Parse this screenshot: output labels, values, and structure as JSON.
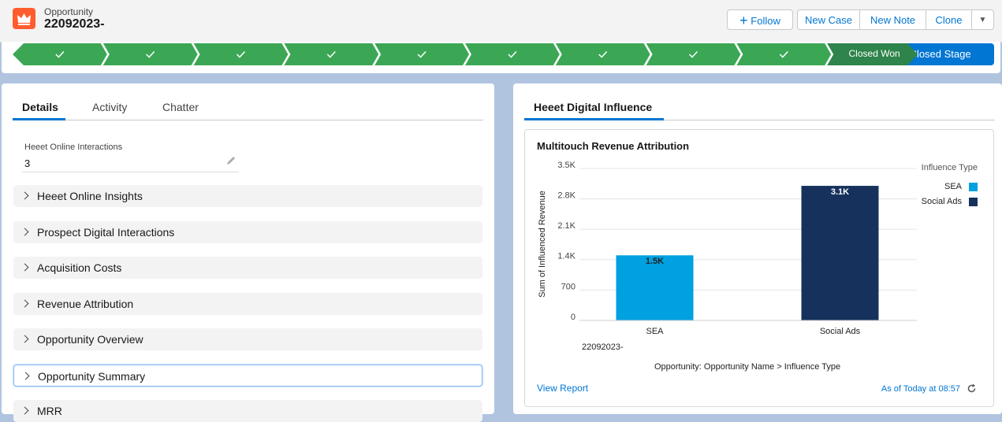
{
  "header": {
    "object_label": "Opportunity",
    "record_name": "22092023-",
    "buttons": [
      "Follow",
      "New Case",
      "New Note",
      "Clone"
    ]
  },
  "path": {
    "current_stage": "Closed Won",
    "action_button": "Change Closed Stage"
  },
  "left_panel": {
    "tabs": [
      "Details",
      "Activity",
      "Chatter"
    ],
    "field": {
      "label": "Heeet Online Interactions",
      "value": "3"
    },
    "sections": [
      "Heeet Online Insights",
      "Prospect Digital Interactions",
      "Acquisition Costs",
      "Revenue Attribution",
      "Opportunity Overview",
      "Opportunity Summary",
      "MRR"
    ]
  },
  "right_panel": {
    "tab": "Heeet Digital Influence",
    "card_title": "Multitouch Revenue Attribution",
    "footer_link": "View Report",
    "timestamp": "As of Today at 08:57"
  },
  "chart_data": {
    "type": "bar",
    "categories": [
      "SEA",
      "Social Ads"
    ],
    "values": [
      1500,
      3100
    ],
    "value_labels": [
      "1.5K",
      "3.1K"
    ],
    "colors": [
      "#00a1e0",
      "#16325c"
    ],
    "group_label": "22092023-",
    "ylabel": "Sum of Influenced Revenue",
    "xlabel": "Opportunity: Opportunity Name > Influence Type",
    "legend_title": "Influence Type",
    "ylim": [
      0,
      3500
    ],
    "yticks": [
      0,
      700,
      {
        "value": 1400,
        "label": "1.4K"
      },
      {
        "value": 2100,
        "label": "2.1K"
      },
      {
        "value": 2800,
        "label": "2.8K"
      },
      {
        "value": 3500,
        "label": "3.5K"
      }
    ],
    "grid": true
  }
}
